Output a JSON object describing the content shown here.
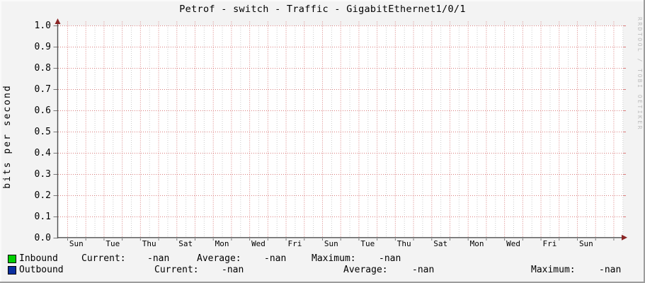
{
  "header": {
    "title": "Petrof - switch - Traffic - GigabitEthernet1/0/1"
  },
  "watermark": "RRDTOOL / TOBI OETIKER",
  "chart_data": {
    "type": "line",
    "title": "Petrof - switch - Traffic - GigabitEthernet1/0/1",
    "xlabel": "",
    "ylabel": "bits per second",
    "ylim": [
      0.0,
      1.0
    ],
    "y_ticks": [
      "1.0",
      "0.9",
      "0.8",
      "0.7",
      "0.6",
      "0.5",
      "0.4",
      "0.3",
      "0.2",
      "0.1",
      "0.0"
    ],
    "x_ticks": [
      "Sun",
      "Tue",
      "Thu",
      "Sat",
      "Mon",
      "Wed",
      "Fri",
      "Sun",
      "Tue",
      "Thu",
      "Sat",
      "Mon",
      "Wed",
      "Fri",
      "Sun"
    ],
    "x_tick_interval_days": 2,
    "grid": true,
    "legend_position": "bottom",
    "series": [
      {
        "name": "Inbound",
        "color": "#00CF00",
        "values": [],
        "current": "-nan",
        "average": "-nan",
        "maximum": "-nan"
      },
      {
        "name": "Outbound",
        "color": "#0B2FA0",
        "values": [],
        "current": "-nan",
        "average": "-nan",
        "maximum": "-nan"
      }
    ],
    "colors": {
      "major_grid": "#d97c7c",
      "minor_grid": "#cccccc",
      "axis": "#4f4f4f",
      "arrow": "#8b2525",
      "canvas": "#ffffff",
      "background": "#f3f3f3"
    }
  },
  "legend": {
    "rows": [
      {
        "swatch_color": "#00CF00",
        "label": "Inbound",
        "entries": [
          {
            "key": "Current:",
            "value": "-nan"
          },
          {
            "key": "Average:",
            "value": "-nan"
          },
          {
            "key": "Maximum:",
            "value": "-nan"
          }
        ]
      },
      {
        "swatch_color": "#0B2FA0",
        "label": "Outbound",
        "entries": [
          {
            "key": "Current:",
            "value": "-nan"
          },
          {
            "key": "Average:",
            "value": "-nan"
          },
          {
            "key": "Maximum:",
            "value": "-nan"
          }
        ]
      }
    ]
  }
}
